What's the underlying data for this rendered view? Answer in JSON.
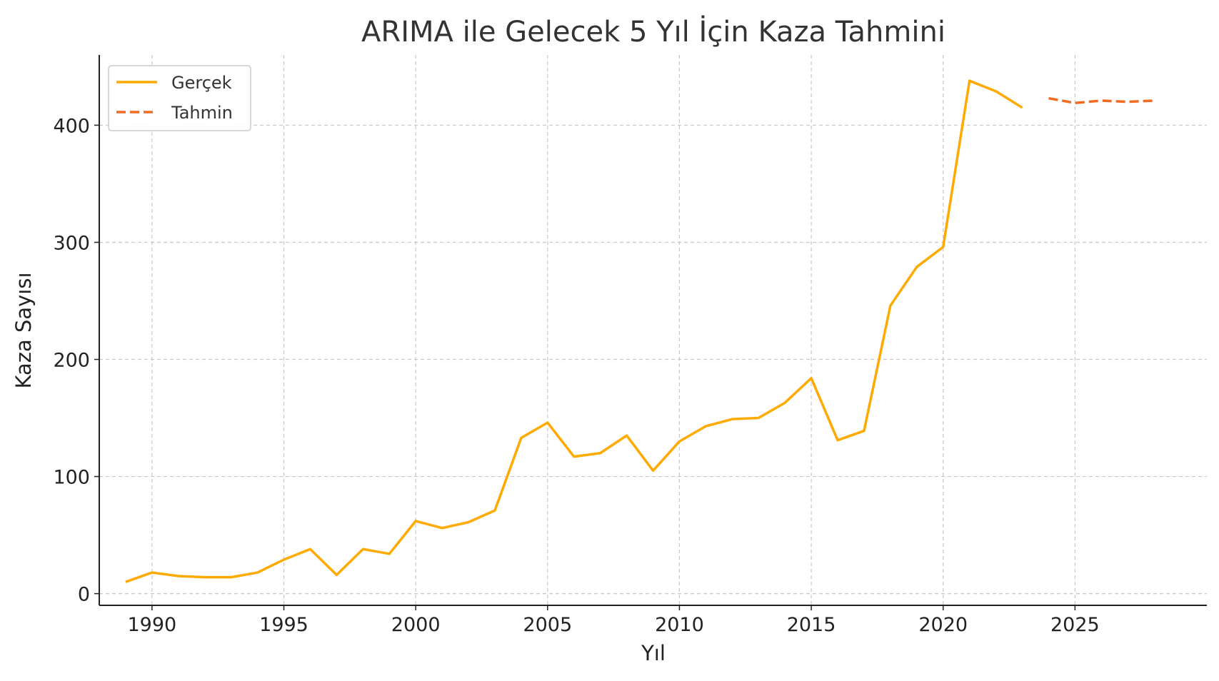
{
  "chart_data": {
    "type": "line",
    "title": "ARIMA ile Gelecek 5 Yıl İçin Kaza Tahmini",
    "xlabel": "Yıl",
    "ylabel": "Kaza Sayısı",
    "xlim": [
      1988,
      2030
    ],
    "ylim": [
      -10,
      460
    ],
    "x_ticks": [
      1990,
      1995,
      2000,
      2005,
      2010,
      2015,
      2020,
      2025
    ],
    "y_ticks": [
      0,
      100,
      200,
      300,
      400
    ],
    "grid": true,
    "legend_position": "top-left",
    "series": [
      {
        "name": "Gerçek",
        "style": "solid",
        "color": "#FFAA00",
        "x": [
          1989,
          1990,
          1991,
          1992,
          1993,
          1994,
          1995,
          1996,
          1997,
          1998,
          1999,
          2000,
          2001,
          2002,
          2003,
          2004,
          2005,
          2006,
          2007,
          2008,
          2009,
          2010,
          2011,
          2012,
          2013,
          2014,
          2015,
          2016,
          2017,
          2018,
          2019,
          2020,
          2021,
          2022,
          2023
        ],
        "y": [
          10,
          18,
          15,
          14,
          14,
          18,
          29,
          38,
          16,
          38,
          34,
          62,
          56,
          61,
          71,
          133,
          146,
          117,
          120,
          135,
          105,
          130,
          143,
          149,
          150,
          163,
          184,
          131,
          139,
          246,
          279,
          296,
          438,
          429,
          415
        ]
      },
      {
        "name": "Tahmin",
        "style": "dashed",
        "color": "#F26B21",
        "x": [
          2024,
          2025,
          2026,
          2027,
          2028
        ],
        "y": [
          423,
          419,
          421,
          420,
          421
        ]
      }
    ]
  }
}
